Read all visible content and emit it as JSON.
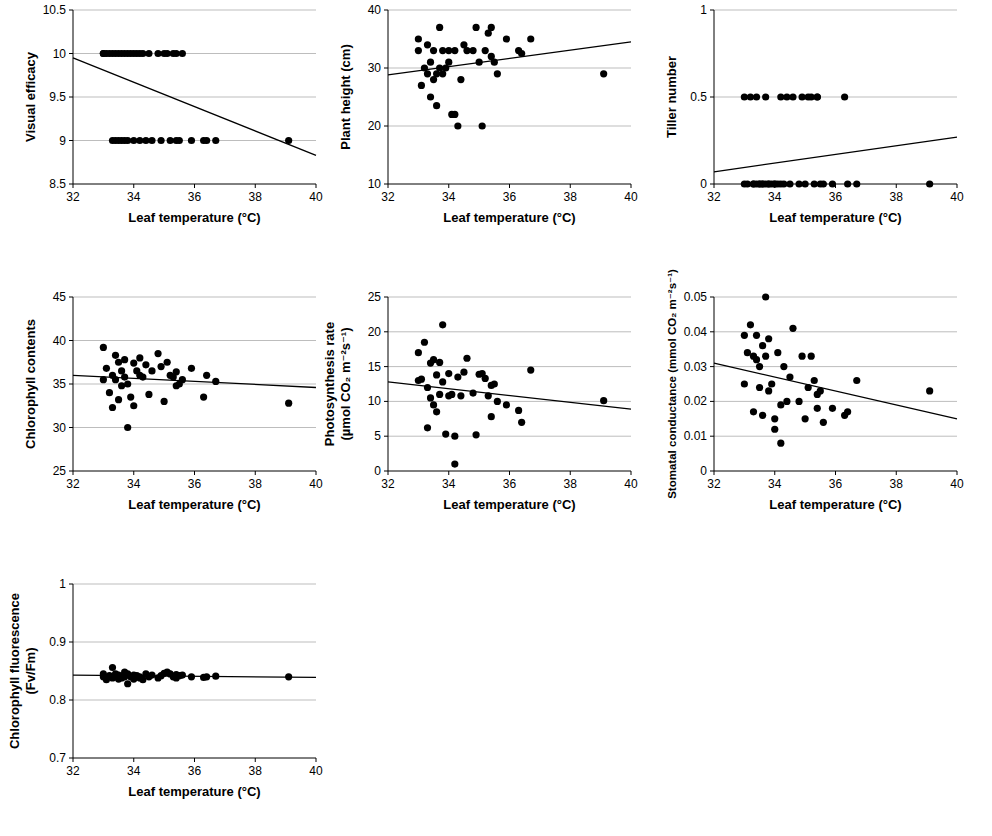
{
  "chart_data": [
    {
      "type": "scatter",
      "xlabel": "Leaf temperature (°C)",
      "ylabel": [
        "Visual efficacy"
      ],
      "xlim": [
        32,
        40
      ],
      "ylim": [
        8.5,
        10.5
      ],
      "xticks": [
        32,
        34,
        36,
        38,
        40
      ],
      "yticks": [
        8.5,
        9,
        9.5,
        10,
        10.5
      ],
      "grid": true,
      "series": [
        {
          "type": "scatter",
          "marker": "circle",
          "color": "#000000",
          "x": [
            33.0,
            33.0,
            33.1,
            33.2,
            33.3,
            33.3,
            33.4,
            33.4,
            33.5,
            33.5,
            33.6,
            33.6,
            33.7,
            33.7,
            33.8,
            33.8,
            33.9,
            34.0,
            34.0,
            34.1,
            34.2,
            34.2,
            34.3,
            34.4,
            34.5,
            34.6,
            34.8,
            34.9,
            35.0,
            35.1,
            35.2,
            35.3,
            35.4,
            35.4,
            35.5,
            35.6,
            35.9,
            36.3,
            36.4,
            36.7,
            39.1
          ],
          "values": [
            10,
            10,
            10,
            10,
            10,
            9,
            9,
            10,
            10,
            9,
            10,
            9,
            10,
            9,
            10,
            9,
            10,
            9,
            10,
            10,
            9,
            10,
            10,
            9,
            10,
            9,
            10,
            9,
            10,
            10,
            9,
            10,
            10,
            9,
            9,
            10,
            9,
            9,
            9,
            9,
            9
          ]
        },
        {
          "type": "line",
          "line_style": "solid",
          "color": "#000000",
          "x": [
            32,
            40
          ],
          "values": [
            9.95,
            8.83
          ]
        }
      ]
    },
    {
      "type": "scatter",
      "xlabel": "Leaf temperature (°C)",
      "ylabel": [
        "Plant height (cm)"
      ],
      "xlim": [
        32,
        40
      ],
      "ylim": [
        10,
        40
      ],
      "xticks": [
        32,
        34,
        36,
        38,
        40
      ],
      "yticks": [
        10,
        20,
        30,
        40
      ],
      "grid": true,
      "series": [
        {
          "type": "scatter",
          "marker": "circle",
          "color": "#000000",
          "x": [
            33.0,
            33.0,
            33.1,
            33.2,
            33.3,
            33.3,
            33.4,
            33.4,
            33.5,
            33.5,
            33.6,
            33.6,
            33.7,
            33.7,
            33.8,
            33.8,
            33.9,
            34.0,
            34.0,
            34.1,
            34.2,
            34.2,
            34.3,
            34.4,
            34.5,
            34.6,
            34.8,
            34.9,
            35.0,
            35.1,
            35.2,
            35.3,
            35.4,
            35.4,
            35.5,
            35.6,
            35.9,
            36.3,
            36.4,
            36.7,
            39.1
          ],
          "values": [
            33,
            35,
            27,
            30,
            34,
            29,
            25,
            31,
            28,
            33,
            29,
            23.5,
            30,
            37,
            33,
            29,
            30,
            33,
            31,
            22,
            33,
            22,
            20,
            28,
            34,
            33,
            33,
            37,
            31,
            20,
            33,
            36,
            37,
            32,
            31,
            29,
            35,
            33,
            32.5,
            35,
            29
          ]
        },
        {
          "type": "line",
          "line_style": "solid",
          "color": "#000000",
          "x": [
            32,
            40
          ],
          "values": [
            28.8,
            34.5
          ]
        }
      ]
    },
    {
      "type": "scatter",
      "xlabel": "Leaf temperature (°C)",
      "ylabel": [
        "Tiller number"
      ],
      "xlim": [
        32,
        40
      ],
      "ylim": [
        0,
        1
      ],
      "xticks": [
        32,
        34,
        36,
        38,
        40
      ],
      "yticks": [
        0,
        0.5,
        1
      ],
      "grid": true,
      "series": [
        {
          "type": "scatter",
          "marker": "circle",
          "color": "#000000",
          "x": [
            33.0,
            33.0,
            33.1,
            33.2,
            33.3,
            33.3,
            33.4,
            33.4,
            33.5,
            33.5,
            33.6,
            33.6,
            33.7,
            33.7,
            33.8,
            33.8,
            33.9,
            34.0,
            34.0,
            34.1,
            34.2,
            34.2,
            34.3,
            34.4,
            34.5,
            34.6,
            34.8,
            34.9,
            35.0,
            35.1,
            35.2,
            35.3,
            35.4,
            35.4,
            35.5,
            35.6,
            35.9,
            36.3,
            36.4,
            36.7,
            39.1
          ],
          "values": [
            0.5,
            0,
            0,
            0.5,
            0,
            0,
            0.5,
            0,
            0,
            0,
            0,
            0,
            0.5,
            0,
            0,
            0,
            0,
            0,
            0,
            0,
            0,
            0.5,
            0,
            0.5,
            0,
            0.5,
            0,
            0.5,
            0,
            0.5,
            0.5,
            0,
            0.5,
            0.5,
            0,
            0,
            0,
            0.5,
            0,
            0,
            0
          ]
        },
        {
          "type": "line",
          "line_style": "solid",
          "color": "#000000",
          "x": [
            32,
            40
          ],
          "values": [
            0.07,
            0.27
          ]
        }
      ]
    },
    {
      "type": "scatter",
      "xlabel": "Leaf temperature (°C)",
      "ylabel": [
        "Chlorophyll contents"
      ],
      "xlim": [
        32,
        40
      ],
      "ylim": [
        25,
        45
      ],
      "xticks": [
        32,
        34,
        36,
        38,
        40
      ],
      "yticks": [
        25,
        30,
        35,
        40,
        45
      ],
      "grid": true,
      "series": [
        {
          "type": "scatter",
          "marker": "circle",
          "color": "#000000",
          "x": [
            33.0,
            33.0,
            33.1,
            33.2,
            33.3,
            33.3,
            33.4,
            33.4,
            33.5,
            33.5,
            33.6,
            33.6,
            33.7,
            33.7,
            33.8,
            33.8,
            33.9,
            34.0,
            34.0,
            34.1,
            34.2,
            34.2,
            34.3,
            34.4,
            34.5,
            34.6,
            34.8,
            34.9,
            35.0,
            35.1,
            35.2,
            35.3,
            35.4,
            35.4,
            35.5,
            35.6,
            35.9,
            36.3,
            36.4,
            36.7,
            39.1
          ],
          "values": [
            39.2,
            35.5,
            36.8,
            34,
            32.3,
            36,
            38.3,
            35.5,
            33.2,
            37.5,
            36.5,
            34.8,
            37.8,
            35.8,
            30,
            35,
            33.5,
            37.4,
            32.5,
            36.5,
            38,
            36,
            35.8,
            37.2,
            33.8,
            36.5,
            38.5,
            37,
            33,
            37.5,
            36,
            35.8,
            36.4,
            34.8,
            35,
            35.5,
            36.8,
            33.5,
            36,
            35.3,
            32.8
          ]
        },
        {
          "type": "line",
          "line_style": "solid",
          "color": "#000000",
          "x": [
            32,
            40
          ],
          "values": [
            36.0,
            34.6
          ]
        }
      ]
    },
    {
      "type": "scatter",
      "xlabel": "Leaf temperature (°C)",
      "ylabel": [
        "Photosynthesis rate",
        "(µmol CO₂ m⁻²s⁻¹)"
      ],
      "xlim": [
        32,
        40
      ],
      "ylim": [
        0,
        25
      ],
      "xticks": [
        32,
        34,
        36,
        38,
        40
      ],
      "yticks": [
        0,
        5,
        10,
        15,
        20,
        25
      ],
      "grid": true,
      "series": [
        {
          "type": "scatter",
          "marker": "circle",
          "color": "#000000",
          "x": [
            33.0,
            33.0,
            33.1,
            33.2,
            33.3,
            33.3,
            33.4,
            33.4,
            33.5,
            33.5,
            33.6,
            33.6,
            33.7,
            33.7,
            33.8,
            33.8,
            33.9,
            34.0,
            34.0,
            34.1,
            34.2,
            34.2,
            34.3,
            34.4,
            34.5,
            34.6,
            34.8,
            34.9,
            35.0,
            35.1,
            35.2,
            35.3,
            35.4,
            35.4,
            35.5,
            35.6,
            35.9,
            36.3,
            36.4,
            36.7,
            39.1
          ],
          "values": [
            17,
            13,
            13.2,
            18.5,
            6.2,
            12,
            10.5,
            15.5,
            16,
            9.5,
            8.5,
            13.8,
            11,
            15.6,
            21,
            12.8,
            5.3,
            14,
            10.8,
            11,
            5,
            1,
            13.5,
            10.8,
            14.2,
            16.2,
            11.2,
            5.2,
            13.9,
            14,
            13.3,
            10.8,
            12.3,
            7.8,
            12.5,
            10,
            9.5,
            8.7,
            7,
            14.5,
            10.1
          ]
        },
        {
          "type": "line",
          "line_style": "solid",
          "color": "#000000",
          "x": [
            32,
            40
          ],
          "values": [
            12.8,
            8.9
          ]
        }
      ]
    },
    {
      "type": "scatter",
      "xlabel": "Leaf temperature (°C)",
      "ylabel": [
        "Stomatal conductance (mmol CO₂ m⁻²s⁻¹)"
      ],
      "xlim": [
        32,
        40
      ],
      "ylim": [
        0,
        0.05
      ],
      "xticks": [
        32,
        34,
        36,
        38,
        40
      ],
      "yticks": [
        0,
        0.01,
        0.02,
        0.03,
        0.04,
        0.05
      ],
      "grid": true,
      "series": [
        {
          "type": "scatter",
          "marker": "circle",
          "color": "#000000",
          "x": [
            33.0,
            33.0,
            33.1,
            33.2,
            33.3,
            33.3,
            33.4,
            33.4,
            33.5,
            33.5,
            33.6,
            33.6,
            33.7,
            33.7,
            33.8,
            33.8,
            33.9,
            34.0,
            34.0,
            34.1,
            34.2,
            34.2,
            34.3,
            34.4,
            34.5,
            34.6,
            34.8,
            34.9,
            35.0,
            35.1,
            35.2,
            35.3,
            35.4,
            35.4,
            35.5,
            35.6,
            35.9,
            36.3,
            36.4,
            36.7,
            39.1
          ],
          "values": [
            0.039,
            0.025,
            0.034,
            0.042,
            0.017,
            0.033,
            0.032,
            0.039,
            0.024,
            0.03,
            0.036,
            0.016,
            0.033,
            0.05,
            0.023,
            0.038,
            0.025,
            0.015,
            0.012,
            0.034,
            0.008,
            0.019,
            0.03,
            0.02,
            0.027,
            0.041,
            0.02,
            0.033,
            0.015,
            0.024,
            0.033,
            0.026,
            0.022,
            0.018,
            0.023,
            0.014,
            0.018,
            0.016,
            0.017,
            0.026,
            0.023
          ]
        },
        {
          "type": "line",
          "line_style": "solid",
          "color": "#000000",
          "x": [
            32,
            40
          ],
          "values": [
            0.031,
            0.015
          ]
        }
      ]
    },
    {
      "type": "scatter",
      "xlabel": "Leaf temperature (°C)",
      "ylabel": [
        "Chlorophyll fluorescence",
        "(Fv/Fm)"
      ],
      "xlim": [
        32,
        40
      ],
      "ylim": [
        0.7,
        1
      ],
      "xticks": [
        32,
        34,
        36,
        38,
        40
      ],
      "yticks": [
        0.7,
        0.8,
        0.9,
        1
      ],
      "grid": true,
      "series": [
        {
          "type": "scatter",
          "marker": "circle",
          "color": "#000000",
          "x": [
            33.0,
            33.0,
            33.1,
            33.2,
            33.3,
            33.3,
            33.4,
            33.4,
            33.5,
            33.5,
            33.6,
            33.6,
            33.7,
            33.7,
            33.8,
            33.8,
            33.9,
            34.0,
            34.0,
            34.1,
            34.2,
            34.2,
            34.3,
            34.4,
            34.5,
            34.6,
            34.8,
            34.9,
            35.0,
            35.1,
            35.2,
            35.3,
            35.4,
            35.4,
            35.5,
            35.6,
            35.9,
            36.3,
            36.4,
            36.7,
            39.1
          ],
          "values": [
            0.84,
            0.845,
            0.835,
            0.842,
            0.838,
            0.856,
            0.84,
            0.845,
            0.836,
            0.843,
            0.84,
            0.838,
            0.848,
            0.84,
            0.845,
            0.828,
            0.84,
            0.836,
            0.843,
            0.842,
            0.838,
            0.84,
            0.835,
            0.845,
            0.84,
            0.843,
            0.838,
            0.842,
            0.846,
            0.848,
            0.845,
            0.84,
            0.844,
            0.838,
            0.842,
            0.843,
            0.84,
            0.839,
            0.84,
            0.841,
            0.84
          ]
        },
        {
          "type": "line",
          "line_style": "solid",
          "color": "#000000",
          "x": [
            32,
            40
          ],
          "values": [
            0.843,
            0.839
          ]
        }
      ]
    }
  ]
}
